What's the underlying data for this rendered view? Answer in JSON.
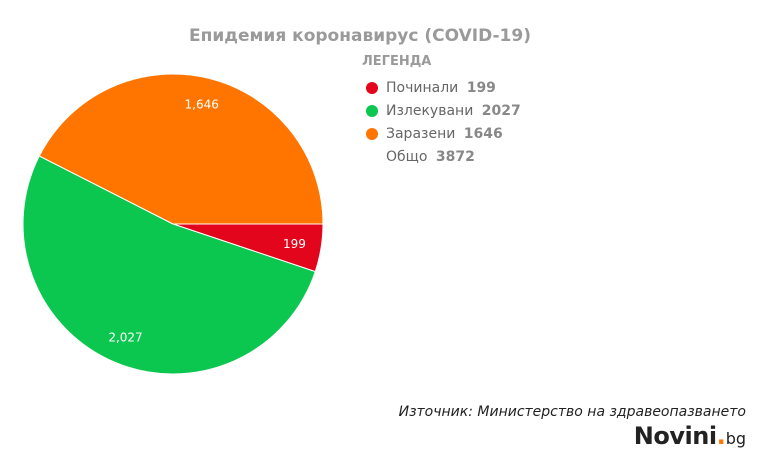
{
  "chart_data": {
    "type": "pie",
    "title": "Епидемия коронавирус (COVID-19)",
    "slices": [
      {
        "name": "Починали",
        "value": 199,
        "label": "199",
        "color": "#e3051b"
      },
      {
        "name": "Излекувани",
        "value": 2027,
        "label": "2,027",
        "color": "#0bc64f"
      },
      {
        "name": "Заразени",
        "value": 1646,
        "label": "1,646",
        "color": "#ff7500"
      }
    ]
  },
  "legend": {
    "title": "ЛЕГЕНДА",
    "items": [
      {
        "label": "Починали",
        "value": "199",
        "color": "#e3051b"
      },
      {
        "label": "Излекувани",
        "value": "2027",
        "color": "#0bc64f"
      },
      {
        "label": "Заразени",
        "value": "1646",
        "color": "#ff7500"
      }
    ],
    "total": {
      "label": "Общо",
      "value": "3872"
    }
  },
  "source": "Източник: Министерство на здравеопазването",
  "logo": {
    "main": "Novini",
    "dot": ".",
    "tld": "bg"
  }
}
